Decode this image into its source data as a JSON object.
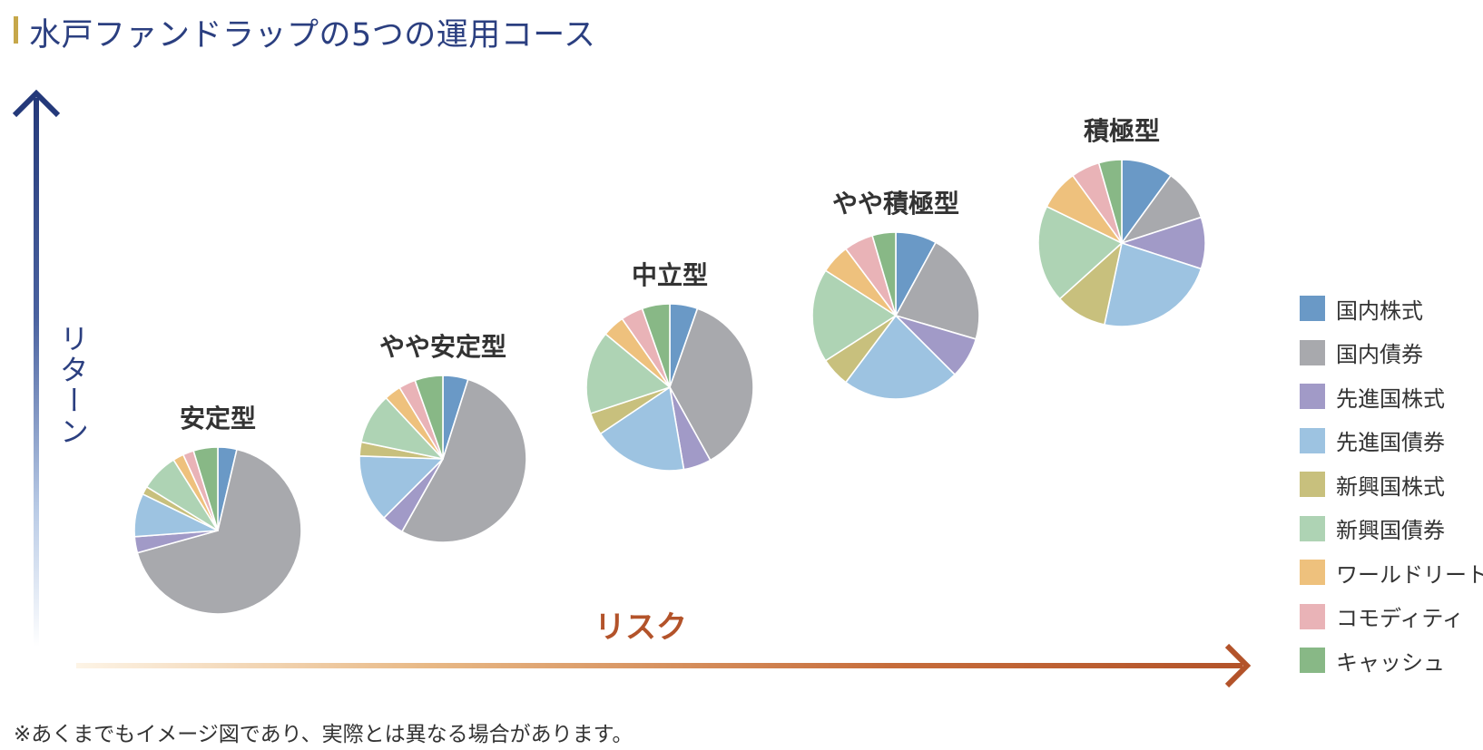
{
  "header": {
    "title": "水戸ファンドラップの5つの運用コース"
  },
  "axes": {
    "y_label": "リターン",
    "x_label": "リスク"
  },
  "colors": {
    "title_bar": "#c6a74a",
    "title_text": "#2b3f80",
    "y_axis": "#24397a",
    "x_axis": "#b3532a"
  },
  "chart_data": {
    "type": "pie",
    "categories": [
      "国内株式",
      "国内債券",
      "先進国株式",
      "先進国債券",
      "新興国株式",
      "新興国債券",
      "ワールドリート",
      "コモディティ",
      "キャッシュ"
    ],
    "colors": [
      "#6a99c6",
      "#a8a9ad",
      "#a19ac7",
      "#9dc3e1",
      "#c8c07d",
      "#aed3b4",
      "#eec17d",
      "#e9b3b7",
      "#88b886"
    ],
    "pies": [
      {
        "name": "安定型",
        "values": [
          3.5,
          64,
          3,
          8,
          1.5,
          7,
          2,
          2,
          4.5
        ]
      },
      {
        "name": "やや安定型",
        "values": [
          4.5,
          49,
          4,
          12,
          2.5,
          9,
          3,
          3,
          5
        ]
      },
      {
        "name": "中立型",
        "values": [
          5,
          34,
          5,
          17,
          4,
          15,
          4,
          4,
          5
        ]
      },
      {
        "name": "やや積極型",
        "values": [
          7,
          19,
          7,
          20,
          5,
          16,
          5,
          5,
          4
        ]
      },
      {
        "name": "積極型",
        "values": [
          9,
          9,
          9,
          21,
          9,
          17,
          7,
          5,
          4
        ]
      }
    ]
  },
  "legend": {
    "items": [
      "国内株式",
      "国内債券",
      "先進国株式",
      "先進国債券",
      "新興国株式",
      "新興国債券",
      "ワールドリート",
      "コモディティ",
      "キャッシュ"
    ]
  },
  "footnote": "※あくまでもイメージ図であり、実際とは異なる場合があります。"
}
